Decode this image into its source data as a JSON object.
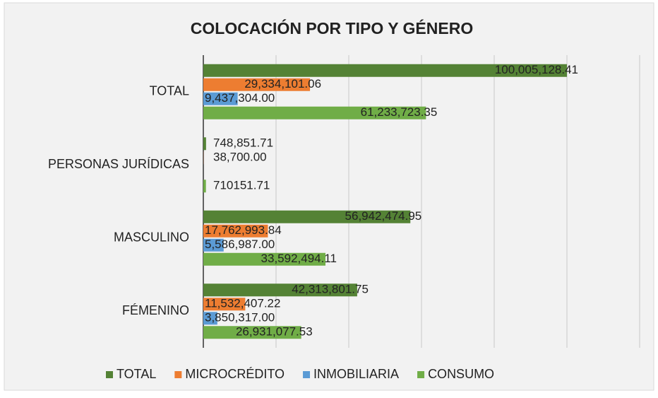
{
  "chart_data": {
    "type": "hbar",
    "title": "COLOCACIÓN POR TIPO Y GÉNERO",
    "categories": [
      "TOTAL",
      "PERSONAS JURÍDICAS",
      "MASCULINO",
      "FÉMENINO"
    ],
    "series": [
      {
        "name": "TOTAL",
        "color": "#548235",
        "values": [
          100005128.41,
          748851.71,
          56942474.95,
          42313801.75
        ],
        "value_labels": [
          "100,005,128.41",
          "748,851.71",
          "56,942,474.95",
          "42,313,801.75"
        ]
      },
      {
        "name": "MICROCRÉDITO",
        "color": "#ed7d31",
        "values": [
          29334101.06,
          38700,
          17762993.84,
          11532407.22
        ],
        "value_labels": [
          "29,334,101.06",
          "38,700.00",
          "17,762,993.84",
          "11,532,407.22"
        ]
      },
      {
        "name": "INMOBILIARIA",
        "color": "#5b9bd5",
        "values": [
          9437304,
          null,
          5586987,
          3850317
        ],
        "value_labels": [
          "9,437,304.00",
          null,
          "5,586,987.00",
          "3,850,317.00"
        ]
      },
      {
        "name": "CONSUMO",
        "color": "#70ad47",
        "values": [
          61233723.35,
          710151.71,
          33592494.11,
          26931077.53
        ],
        "value_labels": [
          "61,233,723.35",
          "710151.71",
          "33,592,494.11",
          "26,931,077.53"
        ]
      }
    ],
    "xlim": [
      0,
      120000000
    ],
    "xticks": [
      0,
      20000000,
      40000000,
      60000000,
      80000000,
      100000000,
      120000000
    ],
    "grid": true,
    "legend": "bottom"
  }
}
